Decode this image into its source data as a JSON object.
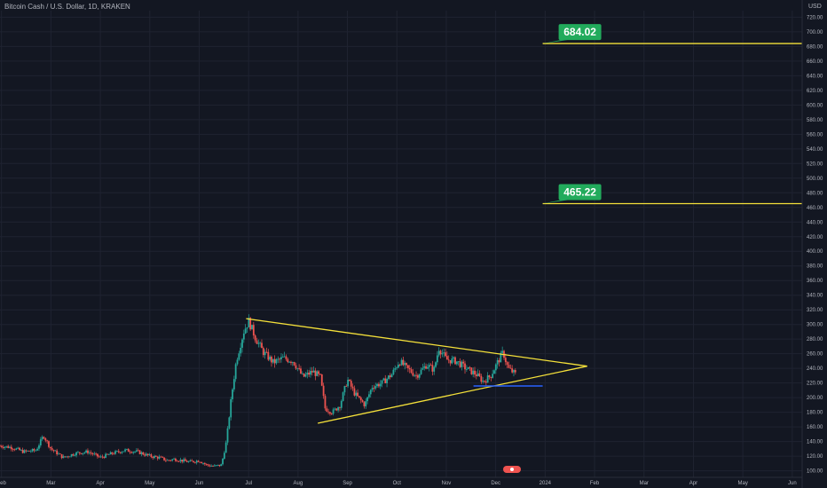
{
  "header": {
    "title": "Bitcoin Cash / U.S. Dollar, 1D, KRAKEN",
    "currency": "USD"
  },
  "colors": {
    "background": "#131722",
    "grid": "#1f2331",
    "up": "#26a69a",
    "down": "#ef5350",
    "trendline": "#f5e13a",
    "support": "#2962ff",
    "level_label_bg": "#22ab5c",
    "axis_text": "#b2b5be"
  },
  "chart_data": {
    "type": "candlestick",
    "title": "Bitcoin Cash / U.S. Dollar, 1D, KRAKEN",
    "x_tick_labels": [
      "Feb",
      "Mar",
      "Apr",
      "May",
      "Jun",
      "Jul",
      "Aug",
      "Sep",
      "Oct",
      "Nov",
      "Dec",
      "2024",
      "Feb",
      "Mar",
      "Apr",
      "May",
      "Jun"
    ],
    "x_ticks_month_index": [
      1,
      2,
      3,
      4,
      5,
      6,
      7,
      8,
      9,
      10,
      11,
      12,
      13,
      14,
      15,
      16,
      17
    ],
    "x_range_month_index": [
      0.97,
      17.2
    ],
    "y_tick_labels": [
      "100.00",
      "120.00",
      "140.00",
      "160.00",
      "180.00",
      "200.00",
      "220.00",
      "240.00",
      "260.00",
      "280.00",
      "300.00",
      "320.00",
      "340.00",
      "360.00",
      "380.00",
      "400.00",
      "420.00",
      "440.00",
      "460.00",
      "480.00",
      "500.00",
      "520.00",
      "540.00",
      "560.00",
      "580.00",
      "600.00",
      "620.00",
      "640.00",
      "660.00",
      "680.00",
      "700.00",
      "720.00"
    ],
    "ylim": [
      91,
      729
    ],
    "grid": true,
    "price_series": {
      "name": "BCH/USD daily (approximate close path)",
      "points": [
        {
          "m": 0.97,
          "v": 134
        },
        {
          "m": 1.2,
          "v": 132
        },
        {
          "m": 1.45,
          "v": 126
        },
        {
          "m": 1.7,
          "v": 128
        },
        {
          "m": 1.85,
          "v": 148
        },
        {
          "m": 2.0,
          "v": 130
        },
        {
          "m": 2.25,
          "v": 118
        },
        {
          "m": 2.5,
          "v": 124
        },
        {
          "m": 2.75,
          "v": 126
        },
        {
          "m": 3.0,
          "v": 118
        },
        {
          "m": 3.25,
          "v": 124
        },
        {
          "m": 3.5,
          "v": 128
        },
        {
          "m": 3.75,
          "v": 126
        },
        {
          "m": 4.0,
          "v": 120
        },
        {
          "m": 4.2,
          "v": 118
        },
        {
          "m": 4.35,
          "v": 114
        },
        {
          "m": 4.5,
          "v": 116
        },
        {
          "m": 4.65,
          "v": 114
        },
        {
          "m": 4.8,
          "v": 112
        },
        {
          "m": 5.0,
          "v": 114
        },
        {
          "m": 5.15,
          "v": 108
        },
        {
          "m": 5.3,
          "v": 106
        },
        {
          "m": 5.45,
          "v": 108
        },
        {
          "m": 5.55,
          "v": 140
        },
        {
          "m": 5.65,
          "v": 200
        },
        {
          "m": 5.75,
          "v": 250
        },
        {
          "m": 5.9,
          "v": 290
        },
        {
          "m": 6.0,
          "v": 305
        },
        {
          "m": 6.15,
          "v": 280
        },
        {
          "m": 6.3,
          "v": 262
        },
        {
          "m": 6.5,
          "v": 248
        },
        {
          "m": 6.7,
          "v": 254
        },
        {
          "m": 6.9,
          "v": 250
        },
        {
          "m": 7.1,
          "v": 228
        },
        {
          "m": 7.3,
          "v": 236
        },
        {
          "m": 7.45,
          "v": 228
        },
        {
          "m": 7.55,
          "v": 185
        },
        {
          "m": 7.7,
          "v": 180
        },
        {
          "m": 7.85,
          "v": 190
        },
        {
          "m": 8.0,
          "v": 225
        },
        {
          "m": 8.15,
          "v": 205
        },
        {
          "m": 8.35,
          "v": 190
        },
        {
          "m": 8.5,
          "v": 215
        },
        {
          "m": 8.7,
          "v": 220
        },
        {
          "m": 8.9,
          "v": 232
        },
        {
          "m": 9.05,
          "v": 250
        },
        {
          "m": 9.2,
          "v": 240
        },
        {
          "m": 9.4,
          "v": 230
        },
        {
          "m": 9.6,
          "v": 245
        },
        {
          "m": 9.75,
          "v": 238
        },
        {
          "m": 9.85,
          "v": 268
        },
        {
          "m": 10.0,
          "v": 252
        },
        {
          "m": 10.2,
          "v": 250
        },
        {
          "m": 10.4,
          "v": 240
        },
        {
          "m": 10.6,
          "v": 232
        },
        {
          "m": 10.75,
          "v": 222
        },
        {
          "m": 10.9,
          "v": 230
        },
        {
          "m": 11.05,
          "v": 250
        },
        {
          "m": 11.15,
          "v": 262
        },
        {
          "m": 11.25,
          "v": 240
        },
        {
          "m": 11.4,
          "v": 232
        }
      ]
    },
    "trendlines": [
      {
        "name": "Upper trendline",
        "from": {
          "m": 5.95,
          "v": 308
        },
        "to": {
          "m": 12.85,
          "v": 243
        }
      },
      {
        "name": "Lower trendline",
        "from": {
          "m": 7.4,
          "v": 165
        },
        "to": {
          "m": 12.85,
          "v": 243
        }
      }
    ],
    "support_line": {
      "from": {
        "m": 10.55,
        "v": 216
      },
      "to": {
        "m": 11.95,
        "v": 216
      }
    },
    "horizontal_levels": [
      {
        "label": "684.02",
        "value": 684.02,
        "from_m": 11.95
      },
      {
        "label": "465.22",
        "value": 465.22,
        "from_m": 11.95
      }
    ]
  }
}
